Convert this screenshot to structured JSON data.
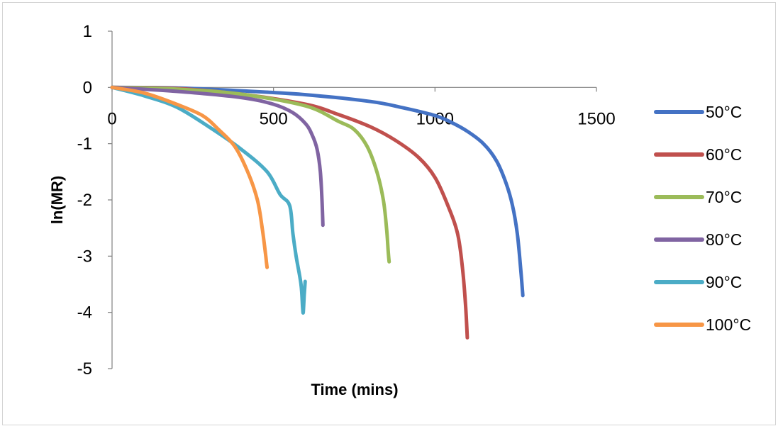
{
  "chart_data": {
    "type": "line",
    "title": "",
    "xlabel": "Time (mins)",
    "ylabel": "ln(MR)",
    "xlim": [
      0,
      1500
    ],
    "ylim": [
      -5,
      1
    ],
    "xticks": [
      "0",
      "500",
      "1000",
      "1500"
    ],
    "yticks": [
      "1",
      "0",
      "-1",
      "-2",
      "-3",
      "-4",
      "-5"
    ],
    "grid": false,
    "legend_position": "right",
    "series": [
      {
        "name": "50°C",
        "color": "#4472C4",
        "x": [
          0,
          200,
          400,
          600,
          800,
          900,
          1000,
          1050,
          1100,
          1150,
          1190,
          1220,
          1240,
          1255,
          1265,
          1272
        ],
        "y": [
          0,
          -0.01,
          -0.06,
          -0.13,
          -0.25,
          -0.36,
          -0.5,
          -0.62,
          -0.78,
          -1.0,
          -1.3,
          -1.7,
          -2.1,
          -2.6,
          -3.2,
          -3.7
        ]
      },
      {
        "name": "60°C",
        "color": "#C0504D",
        "x": [
          0,
          200,
          400,
          600,
          700,
          800,
          880,
          950,
          1000,
          1040,
          1070,
          1085,
          1095,
          1100
        ],
        "y": [
          0,
          -0.02,
          -0.12,
          -0.3,
          -0.48,
          -0.7,
          -0.95,
          -1.25,
          -1.6,
          -2.1,
          -2.6,
          -3.2,
          -3.9,
          -4.45
        ]
      },
      {
        "name": "70°C",
        "color": "#9BBB59",
        "x": [
          0,
          200,
          400,
          600,
          700,
          750,
          790,
          820,
          840,
          850,
          855,
          858
        ],
        "y": [
          0,
          -0.03,
          -0.12,
          -0.33,
          -0.6,
          -0.75,
          -1.05,
          -1.5,
          -2.0,
          -2.5,
          -2.9,
          -3.1
        ]
      },
      {
        "name": "80°C",
        "color": "#8064A2",
        "x": [
          0,
          200,
          400,
          500,
          560,
          600,
          620,
          635,
          645,
          650,
          653
        ],
        "y": [
          0,
          -0.07,
          -0.18,
          -0.3,
          -0.45,
          -0.65,
          -0.85,
          -1.1,
          -1.5,
          -2.0,
          -2.45
        ]
      },
      {
        "name": "90°C",
        "color": "#4BACC6",
        "x": [
          0,
          100,
          200,
          300,
          400,
          480,
          520,
          550,
          560,
          570,
          585,
          590,
          592,
          595,
          598
        ],
        "y": [
          0,
          -0.15,
          -0.35,
          -0.7,
          -1.1,
          -1.5,
          -1.9,
          -2.1,
          -2.6,
          -3.0,
          -3.5,
          -3.9,
          -4.0,
          -3.7,
          -3.45
        ]
      },
      {
        "name": "100°C",
        "color": "#F79646",
        "x": [
          0,
          100,
          200,
          280,
          330,
          380,
          420,
          450,
          465,
          475,
          478,
          480
        ],
        "y": [
          0,
          -0.1,
          -0.3,
          -0.5,
          -0.75,
          -1.05,
          -1.5,
          -2.0,
          -2.5,
          -2.95,
          -3.1,
          -3.2
        ]
      }
    ]
  }
}
